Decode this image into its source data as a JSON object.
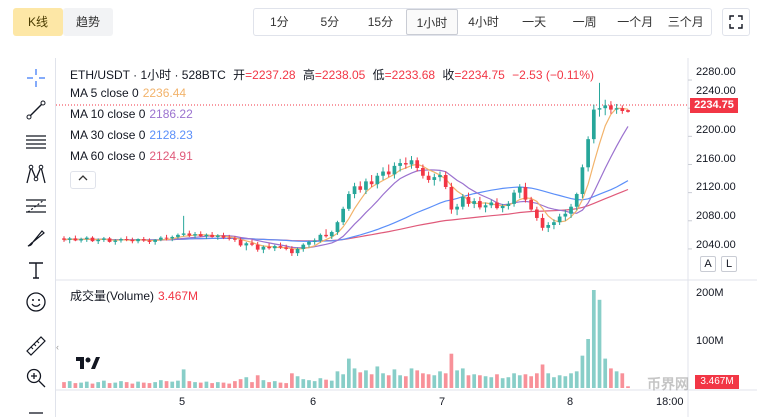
{
  "tabs": {
    "kline": "K线",
    "trend": "趋势"
  },
  "intervals": [
    "1分",
    "5分",
    "15分",
    "1小时",
    "4小时",
    "一天",
    "一周",
    "一个月",
    "三个月"
  ],
  "active_interval": "1小时",
  "header": {
    "symbol": "ETH/USDT · 1小时 · 528BTC",
    "open_label": "开",
    "open": "=2237.28",
    "high_label": "高",
    "high": "=2238.05",
    "low_label": "低",
    "low": "=2233.68",
    "close_label": "收",
    "close": "=2234.75",
    "change": "−2.53 (−0.11%)"
  },
  "ma": [
    {
      "label": "MA 5 close 0",
      "value": "2236.44",
      "color": "#f2b36b"
    },
    {
      "label": "MA 10 close 0",
      "value": "2186.22",
      "color": "#9b72cf"
    },
    {
      "label": "MA 30 close 0",
      "value": "2128.23",
      "color": "#5b8ff9"
    },
    {
      "label": "MA 60 close 0",
      "value": "2124.91",
      "color": "#e05a7a"
    }
  ],
  "volume": {
    "label": "成交量(Volume)",
    "value": "3.467M",
    "tag": "3.467M"
  },
  "price_tag": "2234.75",
  "price_axis": [
    "2280.00",
    "2240.00",
    "2200.00",
    "2160.00",
    "2120.00",
    "2080.00",
    "2040.00"
  ],
  "volume_axis": [
    "200M",
    "100M"
  ],
  "time_axis": [
    "5",
    "6",
    "7",
    "8",
    "18:00"
  ],
  "scale_buttons": {
    "auto": "A",
    "log": "L"
  },
  "watermark": "币界网",
  "colors": {
    "up": "#26a69a",
    "down": "#f23645",
    "active_tab": "#fde7a6"
  },
  "chart_data": {
    "type": "candlestick",
    "title": "ETH/USDT · 1小时 · 528BTC",
    "ylim": [
      2020,
      2290
    ],
    "note": "candles read approximately from the chart; volume in millions",
    "candles": [
      [
        2055,
        2058,
        2050,
        2053
      ],
      [
        2053,
        2057,
        2048,
        2055
      ],
      [
        2055,
        2059,
        2051,
        2052
      ],
      [
        2052,
        2056,
        2049,
        2054
      ],
      [
        2054,
        2058,
        2050,
        2056
      ],
      [
        2056,
        2058,
        2050,
        2051
      ],
      [
        2051,
        2055,
        2047,
        2053
      ],
      [
        2053,
        2057,
        2050,
        2055
      ],
      [
        2055,
        2057,
        2049,
        2050
      ],
      [
        2050,
        2054,
        2046,
        2052
      ],
      [
        2052,
        2056,
        2049,
        2054
      ],
      [
        2054,
        2058,
        2051,
        2053
      ],
      [
        2053,
        2056,
        2048,
        2051
      ],
      [
        2051,
        2055,
        2048,
        2054
      ],
      [
        2054,
        2057,
        2050,
        2052
      ],
      [
        2052,
        2055,
        2047,
        2050
      ],
      [
        2050,
        2054,
        2046,
        2053
      ],
      [
        2053,
        2058,
        2051,
        2056
      ],
      [
        2056,
        2060,
        2052,
        2055
      ],
      [
        2055,
        2059,
        2051,
        2057
      ],
      [
        2057,
        2062,
        2054,
        2060
      ],
      [
        2060,
        2087,
        2058,
        2062
      ],
      [
        2062,
        2066,
        2057,
        2059
      ],
      [
        2059,
        2064,
        2055,
        2061
      ],
      [
        2061,
        2065,
        2057,
        2058
      ],
      [
        2058,
        2062,
        2054,
        2060
      ],
      [
        2060,
        2064,
        2056,
        2057
      ],
      [
        2057,
        2061,
        2053,
        2059
      ],
      [
        2059,
        2063,
        2054,
        2056
      ],
      [
        2056,
        2060,
        2052,
        2055
      ],
      [
        2055,
        2058,
        2050,
        2053
      ],
      [
        2053,
        2056,
        2043,
        2045
      ],
      [
        2045,
        2050,
        2038,
        2048
      ],
      [
        2048,
        2053,
        2044,
        2046
      ],
      [
        2046,
        2050,
        2036,
        2039
      ],
      [
        2039,
        2045,
        2034,
        2043
      ],
      [
        2043,
        2048,
        2039,
        2041
      ],
      [
        2041,
        2046,
        2037,
        2044
      ],
      [
        2044,
        2049,
        2040,
        2042
      ],
      [
        2042,
        2046,
        2038,
        2040
      ],
      [
        2040,
        2044,
        2030,
        2034
      ],
      [
        2034,
        2042,
        2030,
        2040
      ],
      [
        2040,
        2048,
        2036,
        2046
      ],
      [
        2046,
        2052,
        2042,
        2050
      ],
      [
        2050,
        2055,
        2046,
        2052
      ],
      [
        2052,
        2062,
        2049,
        2060
      ],
      [
        2060,
        2068,
        2056,
        2058
      ],
      [
        2058,
        2066,
        2054,
        2064
      ],
      [
        2064,
        2080,
        2060,
        2078
      ],
      [
        2078,
        2100,
        2074,
        2097
      ],
      [
        2097,
        2122,
        2094,
        2118
      ],
      [
        2118,
        2134,
        2112,
        2129
      ],
      [
        2129,
        2136,
        2120,
        2124
      ],
      [
        2124,
        2140,
        2118,
        2136
      ],
      [
        2136,
        2145,
        2128,
        2132
      ],
      [
        2132,
        2148,
        2126,
        2144
      ],
      [
        2144,
        2156,
        2138,
        2150
      ],
      [
        2150,
        2160,
        2142,
        2146
      ],
      [
        2146,
        2163,
        2140,
        2158
      ],
      [
        2158,
        2168,
        2150,
        2162
      ],
      [
        2162,
        2170,
        2154,
        2160
      ],
      [
        2160,
        2172,
        2154,
        2166
      ],
      [
        2166,
        2170,
        2150,
        2155
      ],
      [
        2155,
        2160,
        2140,
        2144
      ],
      [
        2144,
        2150,
        2134,
        2138
      ],
      [
        2138,
        2147,
        2130,
        2142
      ],
      [
        2142,
        2150,
        2136,
        2145
      ],
      [
        2145,
        2150,
        2125,
        2128
      ],
      [
        2128,
        2134,
        2090,
        2096
      ],
      [
        2096,
        2104,
        2088,
        2100
      ],
      [
        2100,
        2118,
        2096,
        2114
      ],
      [
        2114,
        2120,
        2100,
        2104
      ],
      [
        2104,
        2112,
        2098,
        2108
      ],
      [
        2108,
        2114,
        2096,
        2099
      ],
      [
        2099,
        2106,
        2092,
        2102
      ],
      [
        2102,
        2110,
        2098,
        2106
      ],
      [
        2106,
        2112,
        2096,
        2098
      ],
      [
        2098,
        2104,
        2092,
        2101
      ],
      [
        2101,
        2108,
        2096,
        2104
      ],
      [
        2104,
        2124,
        2100,
        2120
      ],
      [
        2120,
        2132,
        2112,
        2128
      ],
      [
        2128,
        2134,
        2106,
        2110
      ],
      [
        2110,
        2114,
        2094,
        2096
      ],
      [
        2096,
        2100,
        2080,
        2084
      ],
      [
        2084,
        2090,
        2066,
        2070
      ],
      [
        2070,
        2078,
        2064,
        2074
      ],
      [
        2074,
        2082,
        2068,
        2078
      ],
      [
        2078,
        2090,
        2074,
        2086
      ],
      [
        2086,
        2096,
        2080,
        2090
      ],
      [
        2090,
        2104,
        2084,
        2100
      ],
      [
        2100,
        2120,
        2095,
        2118
      ],
      [
        2118,
        2160,
        2112,
        2156
      ],
      [
        2156,
        2200,
        2150,
        2196
      ],
      [
        2196,
        2245,
        2190,
        2238
      ],
      [
        2238,
        2276,
        2228,
        2240
      ],
      [
        2240,
        2252,
        2230,
        2244
      ],
      [
        2244,
        2250,
        2232,
        2238
      ],
      [
        2238,
        2246,
        2232,
        2240
      ],
      [
        2240,
        2244,
        2232,
        2236
      ],
      [
        2237.28,
        2238.05,
        2233.68,
        2234.75
      ]
    ],
    "volumes": [
      12,
      14,
      10,
      11,
      13,
      9,
      12,
      15,
      10,
      11,
      14,
      12,
      9,
      13,
      11,
      10,
      12,
      16,
      14,
      13,
      15,
      38,
      14,
      12,
      11,
      13,
      10,
      12,
      11,
      9,
      14,
      18,
      22,
      12,
      26,
      16,
      12,
      14,
      11,
      10,
      30,
      24,
      18,
      16,
      14,
      20,
      17,
      15,
      34,
      28,
      60,
      40,
      32,
      36,
      28,
      44,
      30,
      26,
      38,
      26,
      24,
      40,
      36,
      30,
      28,
      26,
      34,
      30,
      70,
      36,
      40,
      26,
      28,
      26,
      24,
      22,
      28,
      20,
      22,
      30,
      26,
      28,
      24,
      30,
      48,
      30,
      22,
      26,
      24,
      30,
      34,
      66,
      100,
      200,
      180,
      60,
      40,
      34,
      30,
      3.467
    ]
  }
}
